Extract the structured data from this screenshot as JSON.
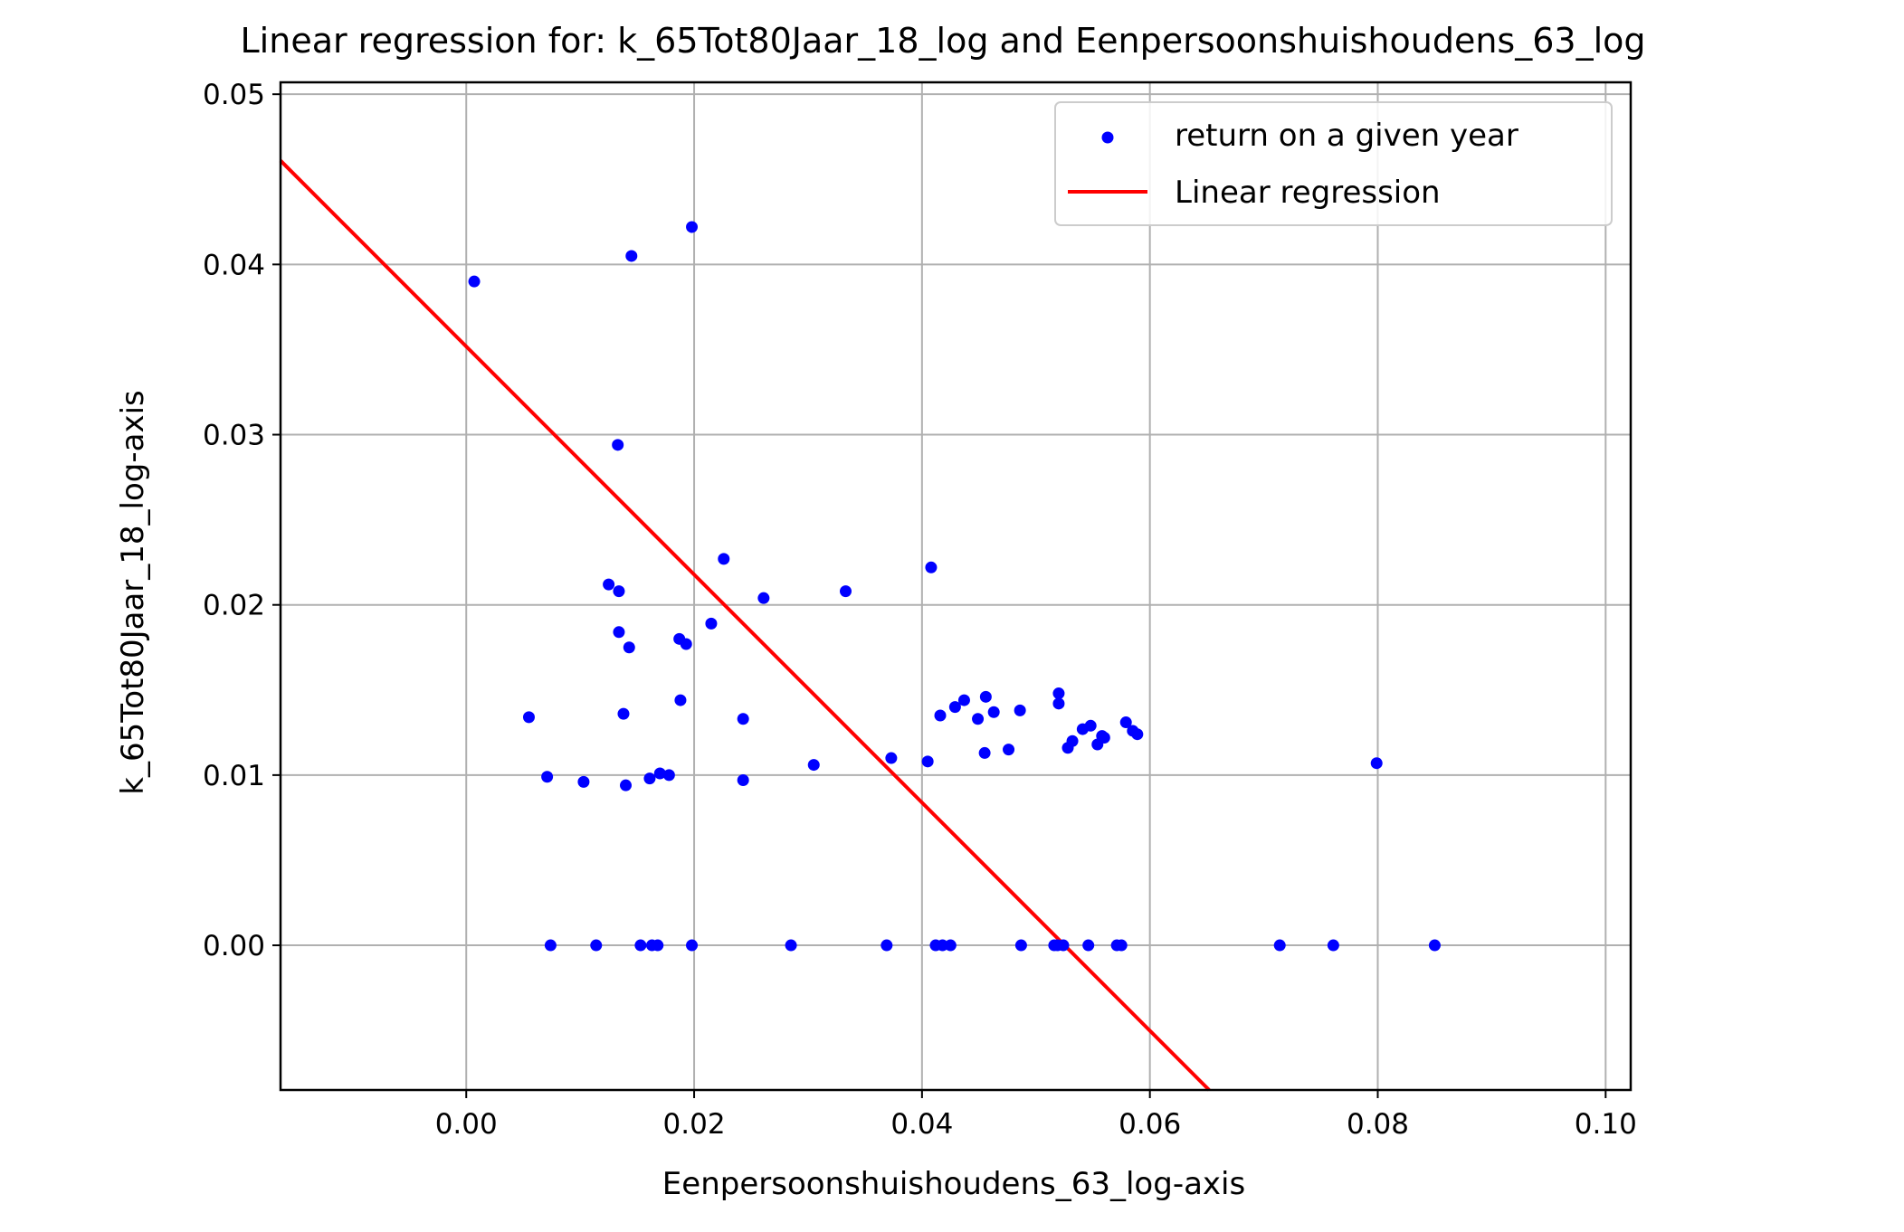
{
  "chart_data": {
    "type": "scatter",
    "title": "Linear regression for: k_65Tot80Jaar_18_log and Eenpersoonshuishoudens_63_log",
    "xlabel": "Eenpersoonshuishoudens_63_log-axis",
    "ylabel": "k_65Tot80Jaar_18_log-axis",
    "xlim": [
      -0.0163,
      0.1022
    ],
    "ylim": [
      -0.0085,
      0.0507
    ],
    "xticks": [
      0.0,
      0.02,
      0.04,
      0.06,
      0.08,
      0.1
    ],
    "xtick_labels": [
      "0.00",
      "0.02",
      "0.04",
      "0.06",
      "0.08",
      "0.10"
    ],
    "yticks": [
      0.0,
      0.01,
      0.02,
      0.03,
      0.04,
      0.05
    ],
    "ytick_labels": [
      "0.00",
      "0.01",
      "0.02",
      "0.03",
      "0.04",
      "0.05"
    ],
    "grid": true,
    "legend": {
      "position": "top-right",
      "entries": [
        "return on a given year",
        "Linear regression"
      ]
    },
    "series": [
      {
        "name": "return on a given year",
        "kind": "scatter",
        "color": "#0000ff",
        "points": [
          [
            0.0007,
            0.039
          ],
          [
            0.0145,
            0.0405
          ],
          [
            0.0198,
            0.0422
          ],
          [
            0.0133,
            0.0294
          ],
          [
            0.0226,
            0.0227
          ],
          [
            0.0408,
            0.0222
          ],
          [
            0.0125,
            0.0212
          ],
          [
            0.0134,
            0.0208
          ],
          [
            0.0333,
            0.0208
          ],
          [
            0.0261,
            0.0204
          ],
          [
            0.0215,
            0.0189
          ],
          [
            0.0134,
            0.0184
          ],
          [
            0.0187,
            0.018
          ],
          [
            0.0193,
            0.0177
          ],
          [
            0.0143,
            0.0175
          ],
          [
            0.0055,
            0.0134
          ],
          [
            0.0138,
            0.0136
          ],
          [
            0.0188,
            0.0144
          ],
          [
            0.0243,
            0.0133
          ],
          [
            0.0071,
            0.0099
          ],
          [
            0.0103,
            0.0096
          ],
          [
            0.014,
            0.0094
          ],
          [
            0.0161,
            0.0098
          ],
          [
            0.017,
            0.0101
          ],
          [
            0.0178,
            0.01
          ],
          [
            0.0243,
            0.0097
          ],
          [
            0.0305,
            0.0106
          ],
          [
            0.0373,
            0.011
          ],
          [
            0.0405,
            0.0108
          ],
          [
            0.0416,
            0.0135
          ],
          [
            0.0429,
            0.014
          ],
          [
            0.0437,
            0.0144
          ],
          [
            0.0449,
            0.0133
          ],
          [
            0.0456,
            0.0146
          ],
          [
            0.0463,
            0.0137
          ],
          [
            0.0455,
            0.0113
          ],
          [
            0.0476,
            0.0115
          ],
          [
            0.0486,
            0.0138
          ],
          [
            0.052,
            0.0148
          ],
          [
            0.052,
            0.0142
          ],
          [
            0.0528,
            0.0116
          ],
          [
            0.0532,
            0.012
          ],
          [
            0.0541,
            0.0127
          ],
          [
            0.0548,
            0.0129
          ],
          [
            0.0554,
            0.0118
          ],
          [
            0.0558,
            0.0123
          ],
          [
            0.056,
            0.0122
          ],
          [
            0.0579,
            0.0131
          ],
          [
            0.0585,
            0.0126
          ],
          [
            0.0589,
            0.0124
          ],
          [
            0.0799,
            0.0107
          ],
          [
            0.0074,
            0.0
          ],
          [
            0.0114,
            0.0
          ],
          [
            0.0153,
            0.0
          ],
          [
            0.0163,
            0.0
          ],
          [
            0.0168,
            0.0
          ],
          [
            0.0198,
            0.0
          ],
          [
            0.0285,
            0.0
          ],
          [
            0.0369,
            0.0
          ],
          [
            0.0412,
            0.0
          ],
          [
            0.0418,
            0.0
          ],
          [
            0.0425,
            0.0
          ],
          [
            0.0487,
            0.0
          ],
          [
            0.0516,
            0.0
          ],
          [
            0.0519,
            0.0
          ],
          [
            0.0524,
            0.0
          ],
          [
            0.0546,
            0.0
          ],
          [
            0.0571,
            0.0
          ],
          [
            0.0575,
            0.0
          ],
          [
            0.0714,
            0.0
          ],
          [
            0.0761,
            0.0
          ],
          [
            0.085,
            0.0
          ]
        ]
      },
      {
        "name": "Linear regression",
        "kind": "line",
        "color": "#ff0000",
        "points": [
          [
            -0.0163,
            0.0461
          ],
          [
            0.0652,
            -0.0085
          ]
        ]
      }
    ]
  }
}
